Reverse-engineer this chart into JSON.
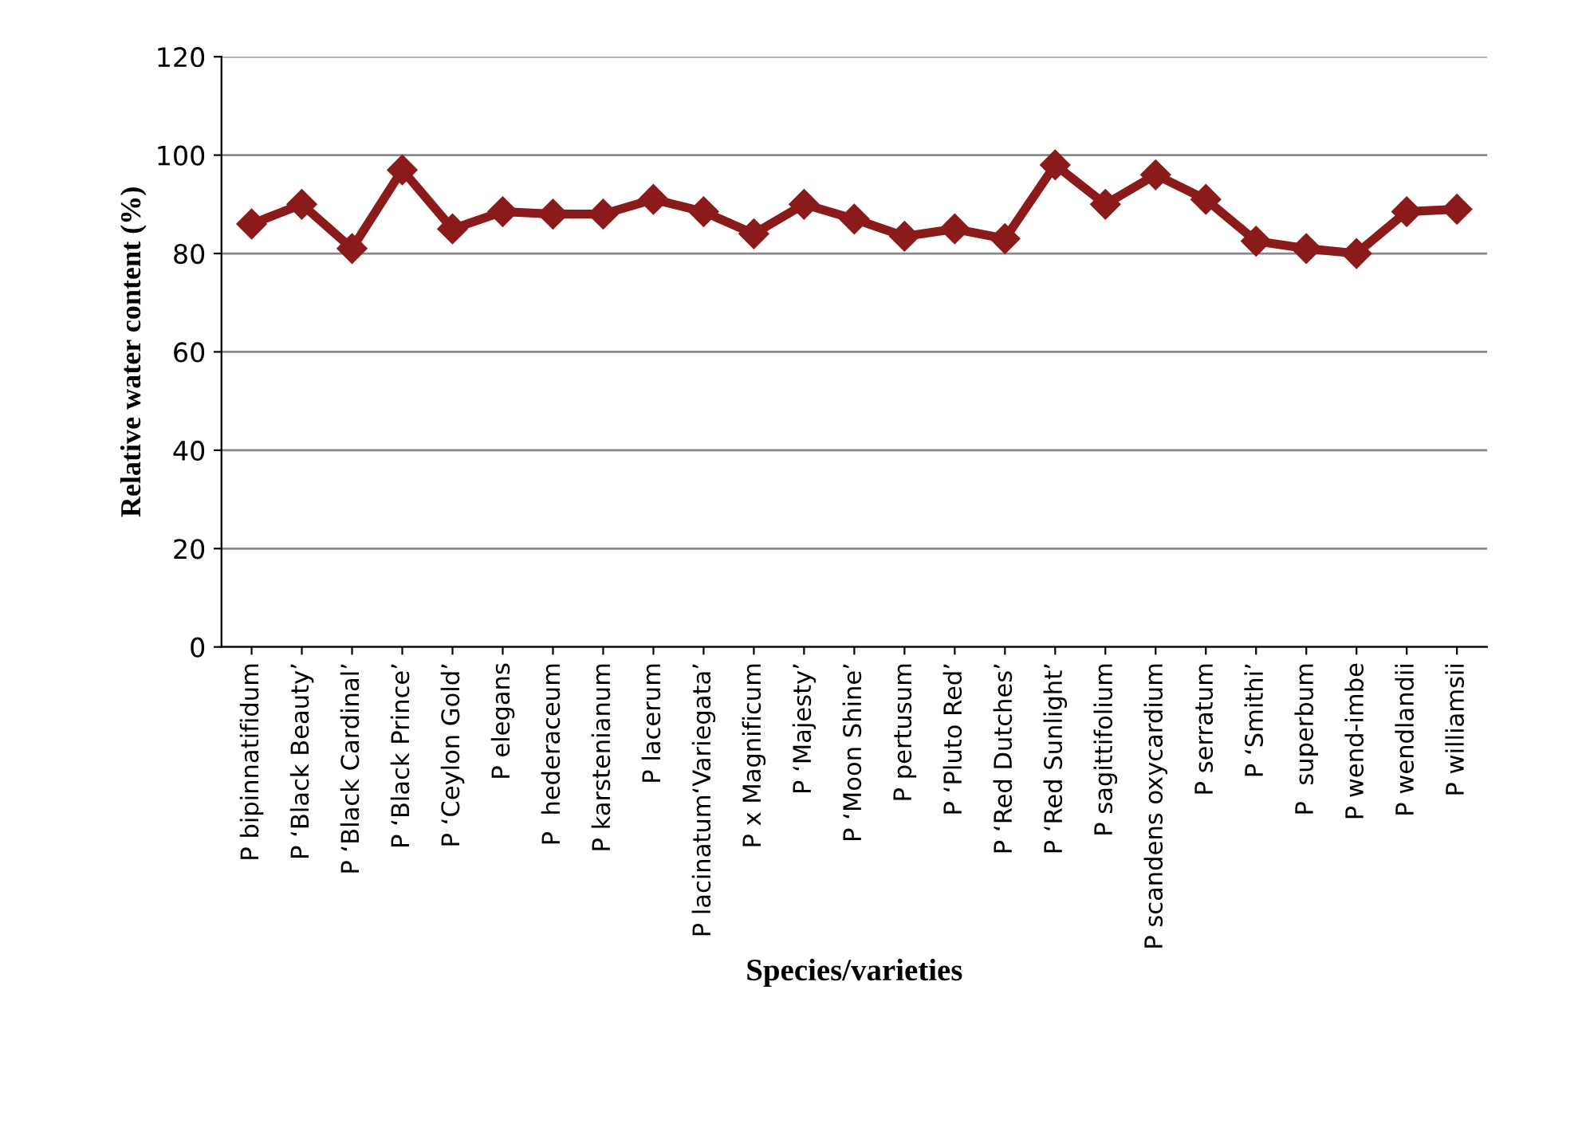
{
  "chart_data": {
    "type": "line",
    "xlabel": "Species/varieties",
    "ylabel": "Relative water content (%)",
    "categories": [
      "P bipinnatifidum",
      "P ‘Black Beauty’",
      "P ‘Black Cardinal’",
      "P ‘Black Prince’",
      "P ‘Ceylon Gold’",
      "P elegans",
      "P  hederaceum",
      "P karstenianum",
      "P lacerum",
      "P lacinatum‘Variegata’",
      "P x Magnificum",
      "P ‘Majesty’",
      "P ‘Moon Shine’",
      "P pertusum",
      "P ‘Pluto Red’",
      "P ‘Red Dutches’",
      "P ‘Red Sunlight’",
      "P sagittifolium",
      "P scandens oxycardium",
      "P serratum",
      "P ‘Smithi’",
      "P  superbum",
      "P wend-imbe",
      "P wendlandii",
      "P williamsii"
    ],
    "series": [
      {
        "color": "#8b1a1a",
        "values": [
          86,
          90,
          81,
          97,
          85,
          88.5,
          88,
          88,
          91,
          88.5,
          84,
          90,
          87,
          83.5,
          85,
          83,
          98,
          90,
          96,
          91,
          82.5,
          81,
          80,
          88.5,
          89
        ]
      }
    ],
    "ylim": [
      0,
      120
    ],
    "yticks": [
      0,
      20,
      40,
      60,
      80,
      100,
      120
    ],
    "grid": "y",
    "marker": "diamond",
    "line_style": "solid"
  }
}
